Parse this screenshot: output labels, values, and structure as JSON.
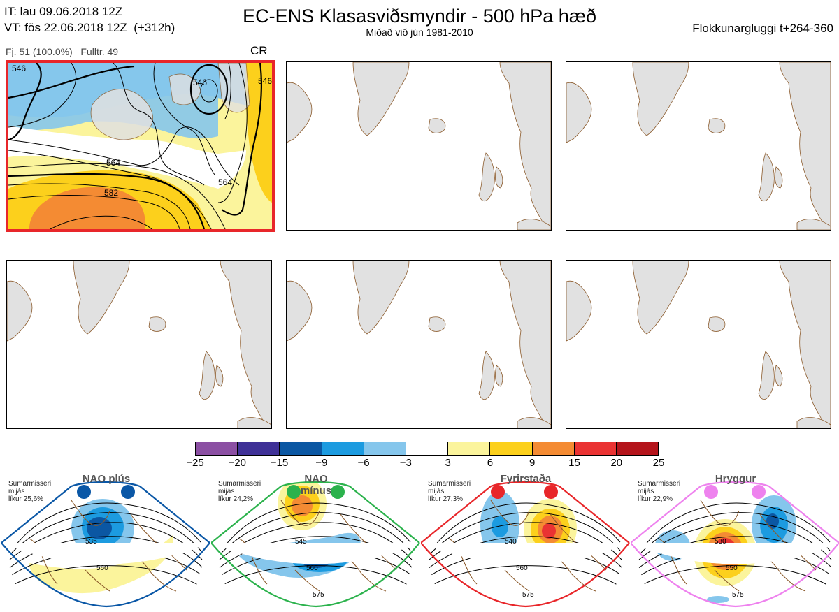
{
  "header": {
    "it_line": "IT: lau 09.06.2018 12Z",
    "vt_line": "VT: fös 22.06.2018 12Z  (+312h)",
    "title": "EC-ENS Klasasviðsmyndir - 500 hPa hæð",
    "subtitle": "Miðað við jún 1981-2010",
    "window": "Flokkunargluggi t+264-360"
  },
  "panel": {
    "info": "Fj. 51 (100.0%)   Fulltr. 49",
    "code": "CR",
    "contour_labels": [
      "546",
      "564",
      "582",
      "546",
      "564",
      "546"
    ]
  },
  "colors": {
    "selected_border": "#e8262a",
    "land": "#e1e1e1",
    "coast": "#8b5a2b",
    "nao_plus": "#0a57a6",
    "nao_minus": "#2bb24c",
    "blocking": "#e8262a",
    "ridge": "#ee82ee"
  },
  "colorbar": {
    "ticks": [
      "−25",
      "−20",
      "−15",
      "−9",
      "−6",
      "−3",
      "3",
      "6",
      "9",
      "15",
      "20",
      "25"
    ],
    "colors": [
      "#8b4fa3",
      "#3f3197",
      "#0b57a3",
      "#1c9be0",
      "#85c6ec",
      "#ffffff",
      "#fbf49c",
      "#fcd01c",
      "#f48b33",
      "#ea3333",
      "#b4141b"
    ]
  },
  "regimes": [
    {
      "name": "NAO plús",
      "note": "Sumarmisseri\nmijás\nlíkur 25,6%",
      "color": "#0a57a6",
      "labels": [
        "535",
        "560"
      ]
    },
    {
      "name": "NAO mínus",
      "note": "Sumarmisseri\nmijás\nlíkur 24,2%",
      "color": "#2bb24c",
      "labels": [
        "545",
        "560",
        "575"
      ]
    },
    {
      "name": "Fyrirstaða",
      "note": "Sumarmisseri\nmijás\nlíkur 27,3%",
      "color": "#e8262a",
      "labels": [
        "540",
        "560",
        "575"
      ]
    },
    {
      "name": "Hryggur",
      "note": "Sumarmisseri\nmijás\nlíkur 22,9%",
      "color": "#ee82ee",
      "labels": [
        "530",
        "550",
        "575"
      ]
    }
  ]
}
